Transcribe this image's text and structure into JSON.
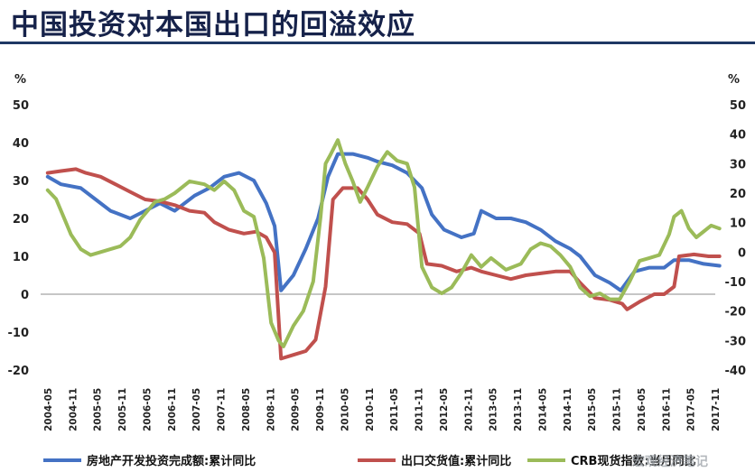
{
  "page": {
    "title": "中国投资对本国出口的回溢效应",
    "watermark": "宏观经济笔记"
  },
  "chart_data": {
    "type": "line",
    "title": "中国投资对本国出口的回溢效应",
    "left_axis": {
      "unit": "%",
      "ylim": [
        -20,
        50
      ],
      "ticks": [
        -20,
        -10,
        0,
        10,
        20,
        30,
        40,
        50
      ]
    },
    "right_axis": {
      "unit": "%",
      "ylim": [
        -40,
        50
      ],
      "ticks": [
        -40,
        -30,
        -20,
        -10,
        0,
        10,
        20,
        30,
        40,
        50
      ]
    },
    "x_ticks": [
      "2004-05",
      "2004-11",
      "2005-05",
      "2005-11",
      "2006-05",
      "2006-11",
      "2007-05",
      "2007-11",
      "2008-05",
      "2008-11",
      "2009-05",
      "2009-11",
      "2010-05",
      "2010-11",
      "2011-05",
      "2011-11",
      "2012-05",
      "2012-11",
      "2013-05",
      "2013-11",
      "2014-05",
      "2014-11",
      "2015-05",
      "2015-11",
      "2016-05",
      "2016-11",
      "2017-05",
      "2017-11"
    ],
    "grid": false,
    "legend_position": "bottom",
    "series": [
      {
        "name": "房地产开发投资完成额:累计同比",
        "axis": "left",
        "color": "#4472c4",
        "points": [
          [
            2004.33,
            31
          ],
          [
            2004.6,
            29
          ],
          [
            2005.0,
            28
          ],
          [
            2005.3,
            25
          ],
          [
            2005.6,
            22
          ],
          [
            2006.0,
            20
          ],
          [
            2006.3,
            22
          ],
          [
            2006.6,
            24
          ],
          [
            2006.9,
            22
          ],
          [
            2007.3,
            26
          ],
          [
            2007.6,
            28
          ],
          [
            2007.9,
            31
          ],
          [
            2008.2,
            32
          ],
          [
            2008.5,
            30
          ],
          [
            2008.75,
            24
          ],
          [
            2008.92,
            18
          ],
          [
            2009.05,
            1
          ],
          [
            2009.3,
            5
          ],
          [
            2009.55,
            12
          ],
          [
            2009.8,
            20
          ],
          [
            2010.0,
            31
          ],
          [
            2010.2,
            37
          ],
          [
            2010.5,
            37
          ],
          [
            2010.8,
            36
          ],
          [
            2011.0,
            35
          ],
          [
            2011.3,
            34
          ],
          [
            2011.6,
            32
          ],
          [
            2011.9,
            28
          ],
          [
            2012.1,
            21
          ],
          [
            2012.35,
            17
          ],
          [
            2012.7,
            15
          ],
          [
            2012.95,
            16
          ],
          [
            2013.1,
            22
          ],
          [
            2013.4,
            20
          ],
          [
            2013.7,
            20
          ],
          [
            2014.0,
            19
          ],
          [
            2014.3,
            17
          ],
          [
            2014.6,
            14
          ],
          [
            2014.9,
            12
          ],
          [
            2015.1,
            10
          ],
          [
            2015.4,
            5
          ],
          [
            2015.7,
            3
          ],
          [
            2015.92,
            1
          ],
          [
            2016.2,
            6
          ],
          [
            2016.5,
            7
          ],
          [
            2016.8,
            7
          ],
          [
            2017.0,
            9
          ],
          [
            2017.3,
            9
          ],
          [
            2017.6,
            8
          ],
          [
            2017.92,
            7.5
          ]
        ]
      },
      {
        "name": "出口交货值:累计同比",
        "axis": "left",
        "color": "#c0504d",
        "points": [
          [
            2004.33,
            32
          ],
          [
            2004.6,
            32.5
          ],
          [
            2004.9,
            33
          ],
          [
            2005.1,
            32
          ],
          [
            2005.4,
            31
          ],
          [
            2005.7,
            29
          ],
          [
            2006.0,
            27
          ],
          [
            2006.3,
            25
          ],
          [
            2006.6,
            24.5
          ],
          [
            2006.9,
            23.5
          ],
          [
            2007.2,
            22
          ],
          [
            2007.5,
            21.5
          ],
          [
            2007.7,
            19
          ],
          [
            2008.0,
            17
          ],
          [
            2008.3,
            16
          ],
          [
            2008.55,
            16.5
          ],
          [
            2008.75,
            15
          ],
          [
            2008.92,
            11
          ],
          [
            2009.05,
            -17
          ],
          [
            2009.3,
            -16
          ],
          [
            2009.55,
            -15
          ],
          [
            2009.75,
            -12
          ],
          [
            2009.95,
            2
          ],
          [
            2010.1,
            25
          ],
          [
            2010.3,
            28
          ],
          [
            2010.6,
            28
          ],
          [
            2010.8,
            25
          ],
          [
            2011.0,
            21
          ],
          [
            2011.3,
            19
          ],
          [
            2011.6,
            18.5
          ],
          [
            2011.85,
            16
          ],
          [
            2012.0,
            8
          ],
          [
            2012.3,
            7.5
          ],
          [
            2012.6,
            6
          ],
          [
            2012.9,
            7
          ],
          [
            2013.1,
            6
          ],
          [
            2013.4,
            5
          ],
          [
            2013.7,
            4
          ],
          [
            2014.0,
            5
          ],
          [
            2014.3,
            5.5
          ],
          [
            2014.6,
            6
          ],
          [
            2014.9,
            6
          ],
          [
            2015.1,
            3
          ],
          [
            2015.4,
            -1
          ],
          [
            2015.7,
            -1.5
          ],
          [
            2015.95,
            -2.5
          ],
          [
            2016.05,
            -4
          ],
          [
            2016.3,
            -2
          ],
          [
            2016.6,
            0
          ],
          [
            2016.8,
            0
          ],
          [
            2017.0,
            2
          ],
          [
            2017.1,
            10
          ],
          [
            2017.4,
            10.5
          ],
          [
            2017.7,
            10
          ],
          [
            2017.92,
            10
          ]
        ]
      },
      {
        "name": "CRB现货指数:当月同比",
        "axis": "right",
        "color": "#9bbb59",
        "points": [
          [
            2004.33,
            21
          ],
          [
            2004.5,
            18
          ],
          [
            2004.7,
            10
          ],
          [
            2004.8,
            6
          ],
          [
            2005.0,
            1
          ],
          [
            2005.2,
            -1
          ],
          [
            2005.4,
            0
          ],
          [
            2005.6,
            1
          ],
          [
            2005.8,
            2
          ],
          [
            2006.0,
            5
          ],
          [
            2006.2,
            11
          ],
          [
            2006.5,
            17
          ],
          [
            2006.7,
            18
          ],
          [
            2006.9,
            20
          ],
          [
            2007.2,
            24
          ],
          [
            2007.5,
            23
          ],
          [
            2007.7,
            21
          ],
          [
            2007.9,
            24
          ],
          [
            2008.1,
            21
          ],
          [
            2008.3,
            14
          ],
          [
            2008.5,
            12
          ],
          [
            2008.7,
            -2
          ],
          [
            2008.85,
            -24
          ],
          [
            2009.0,
            -30
          ],
          [
            2009.1,
            -32
          ],
          [
            2009.3,
            -25
          ],
          [
            2009.5,
            -20
          ],
          [
            2009.7,
            -10
          ],
          [
            2009.85,
            12
          ],
          [
            2009.95,
            30
          ],
          [
            2010.05,
            33
          ],
          [
            2010.2,
            38
          ],
          [
            2010.35,
            30
          ],
          [
            2010.5,
            24
          ],
          [
            2010.65,
            17
          ],
          [
            2010.8,
            22
          ],
          [
            2011.0,
            29
          ],
          [
            2011.2,
            34
          ],
          [
            2011.4,
            31
          ],
          [
            2011.6,
            30
          ],
          [
            2011.75,
            22
          ],
          [
            2011.9,
            -5
          ],
          [
            2012.1,
            -12
          ],
          [
            2012.3,
            -14
          ],
          [
            2012.5,
            -12
          ],
          [
            2012.7,
            -7
          ],
          [
            2012.9,
            -1
          ],
          [
            2013.1,
            -5
          ],
          [
            2013.3,
            -2
          ],
          [
            2013.6,
            -6
          ],
          [
            2013.9,
            -4
          ],
          [
            2014.1,
            1
          ],
          [
            2014.3,
            3
          ],
          [
            2014.5,
            2
          ],
          [
            2014.7,
            -1
          ],
          [
            2014.9,
            -5
          ],
          [
            2015.1,
            -12
          ],
          [
            2015.3,
            -15
          ],
          [
            2015.5,
            -14
          ],
          [
            2015.7,
            -16
          ],
          [
            2015.9,
            -16
          ],
          [
            2016.1,
            -10
          ],
          [
            2016.3,
            -3
          ],
          [
            2016.5,
            -2
          ],
          [
            2016.7,
            -1
          ],
          [
            2016.9,
            6
          ],
          [
            2017.0,
            12
          ],
          [
            2017.15,
            14
          ],
          [
            2017.3,
            8
          ],
          [
            2017.45,
            5
          ],
          [
            2017.6,
            7
          ],
          [
            2017.75,
            9
          ],
          [
            2017.92,
            8
          ]
        ]
      }
    ]
  }
}
